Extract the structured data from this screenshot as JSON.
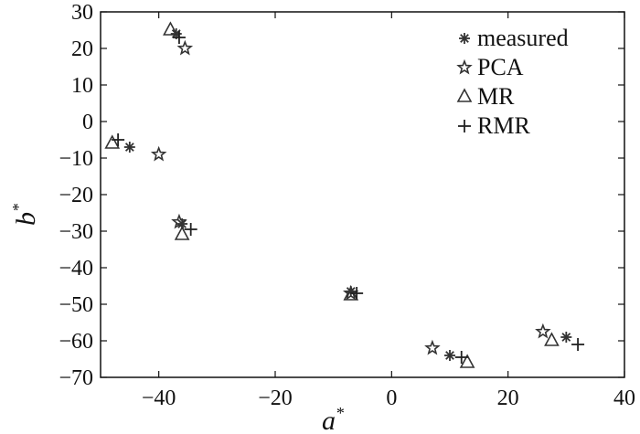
{
  "chart_data": {
    "type": "scatter",
    "xlabel": "a",
    "xlabel_sup": "*",
    "ylabel": "b",
    "ylabel_sup": "*",
    "xlim": [
      -50,
      40
    ],
    "ylim": [
      -70,
      30
    ],
    "xticks": [
      -40,
      -20,
      0,
      20,
      40
    ],
    "yticks": [
      30,
      20,
      10,
      0,
      -10,
      -20,
      -30,
      -40,
      -50,
      -60,
      -70
    ],
    "grid": false,
    "legend_position": "top-right",
    "series": [
      {
        "name": "measured",
        "marker": "asterisk",
        "points": [
          [
            -37,
            24
          ],
          [
            -45,
            -7
          ],
          [
            -36,
            -28
          ],
          [
            -7,
            -46.5
          ],
          [
            10,
            -64
          ],
          [
            30,
            -59
          ]
        ]
      },
      {
        "name": "PCA",
        "marker": "star",
        "points": [
          [
            -35.5,
            20
          ],
          [
            -40,
            -9
          ],
          [
            -36.5,
            -27.5
          ],
          [
            -7,
            -47
          ],
          [
            7,
            -62
          ],
          [
            26,
            -57.5
          ]
        ]
      },
      {
        "name": "MR",
        "marker": "triangle",
        "points": [
          [
            -38,
            25
          ],
          [
            -48,
            -6
          ],
          [
            -36,
            -31
          ],
          [
            -7,
            -47.5
          ],
          [
            13,
            -66
          ],
          [
            27.5,
            -60
          ]
        ]
      },
      {
        "name": "RMR",
        "marker": "plus",
        "points": [
          [
            -36.5,
            23
          ],
          [
            -47,
            -5
          ],
          [
            -34.5,
            -29.5
          ],
          [
            -6,
            -47
          ],
          [
            12,
            -64.5
          ],
          [
            32,
            -61
          ]
        ]
      }
    ]
  }
}
